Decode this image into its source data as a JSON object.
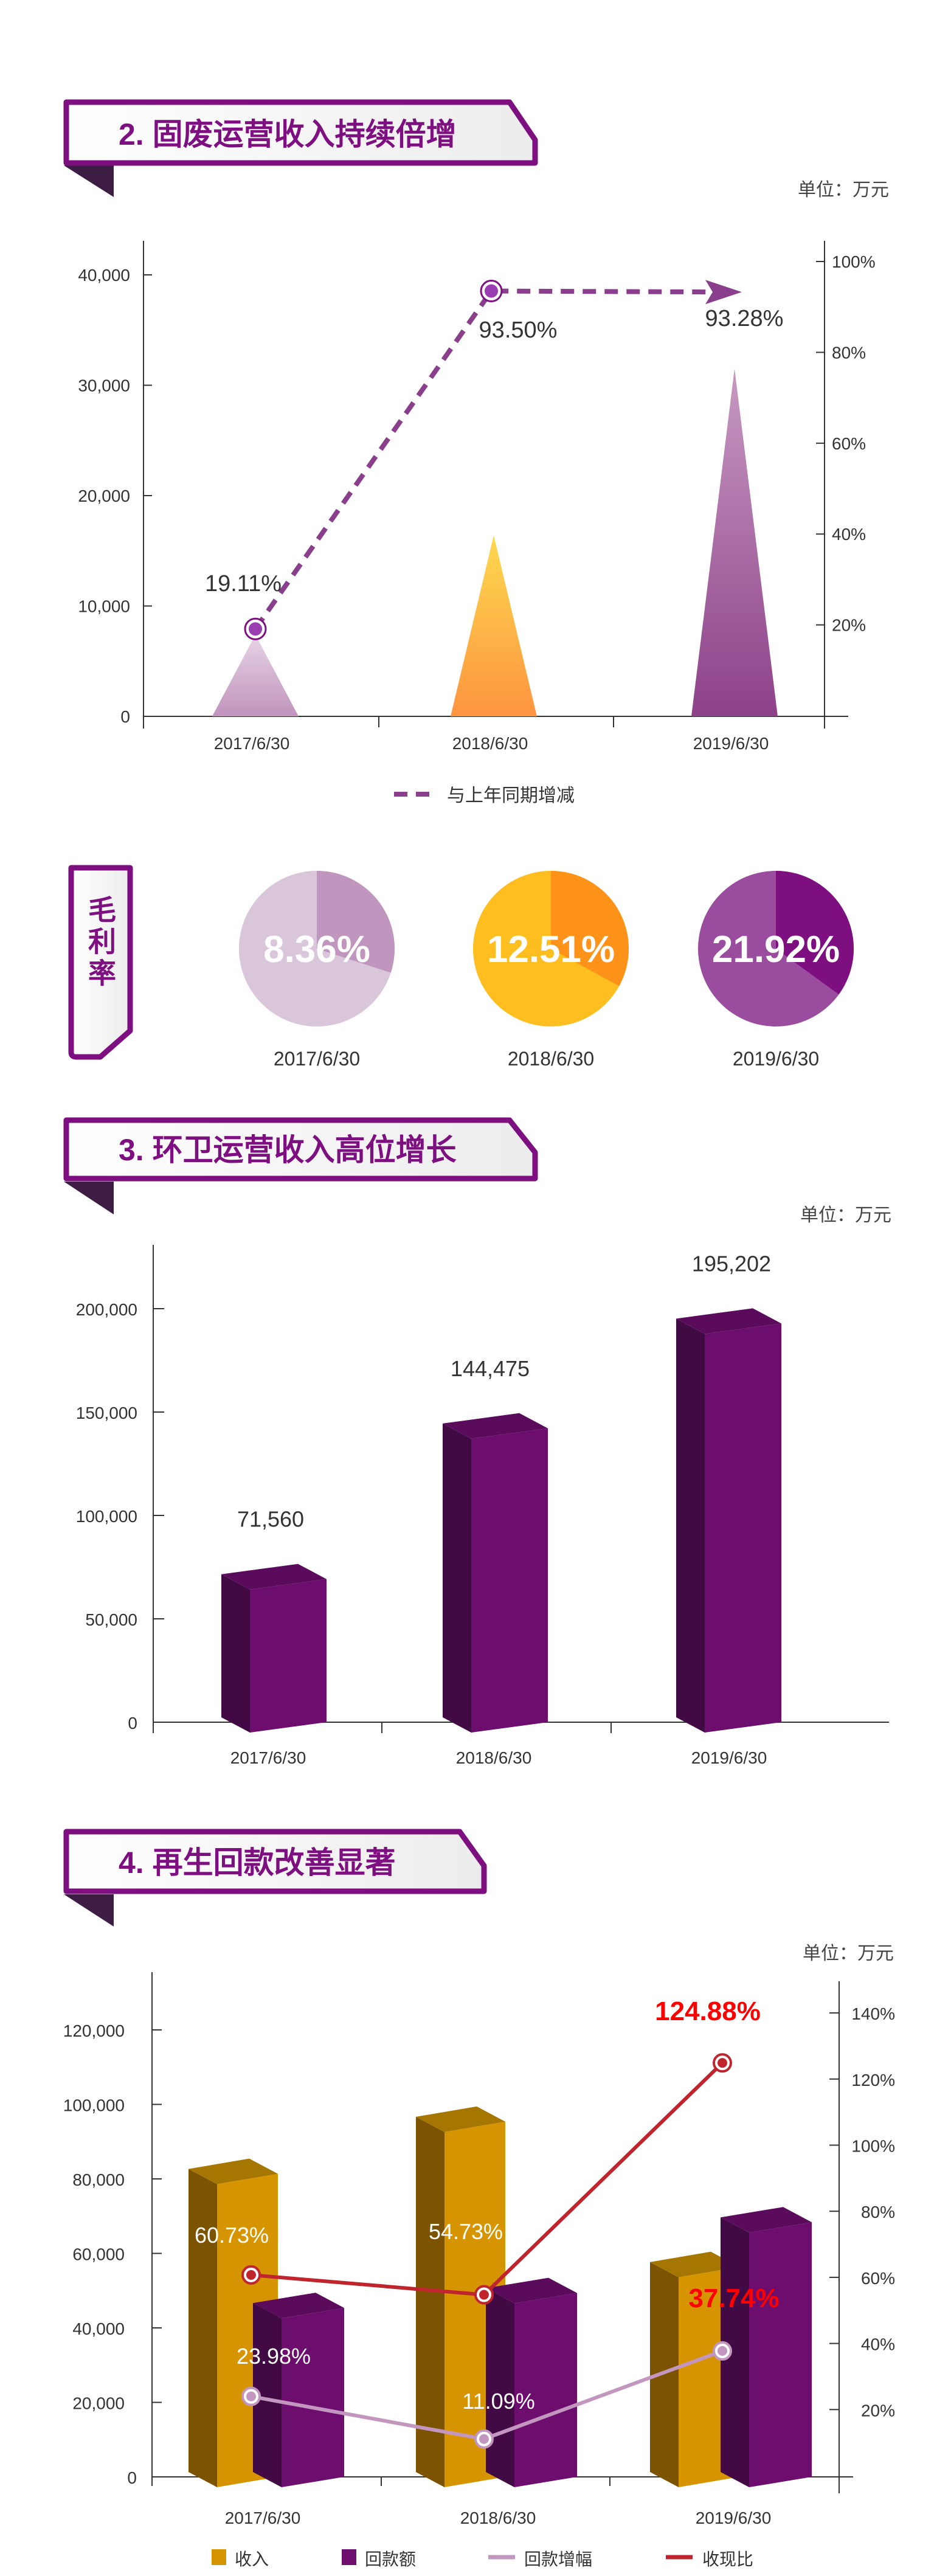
{
  "colors": {
    "brand": "#7e0f80",
    "dark": "#3d1d44",
    "red": "#c0252e",
    "highlight_red": "#ff0000",
    "gold": "#d69500",
    "purple": "#6d0e6f",
    "light_purple": "#c396c0"
  },
  "section2": {
    "title": "2. 固废运营收入持续倍增",
    "unit": "单位：万元"
  },
  "gross_margin": {
    "label": "毛利率",
    "items": [
      {
        "date": "2017/6/30",
        "value": "8.36%",
        "colors": [
          "#d9c6da",
          "#c196be"
        ]
      },
      {
        "date": "2018/6/30",
        "value": "12.51%",
        "colors": [
          "#ffbe1f",
          "#ff9218"
        ]
      },
      {
        "date": "2019/6/30",
        "value": "21.92%",
        "colors": [
          "#9a4c9e",
          "#7e0f80"
        ]
      }
    ]
  },
  "section3": {
    "title": "3. 环卫运营收入高位增长",
    "unit": "单位：万元"
  },
  "section4": {
    "title": "4. 再生回款改善显著",
    "unit": "单位：万元"
  },
  "chart_data": [
    {
      "type": "bar",
      "categories": [
        "2017/6/30",
        "2018/6/30",
        "2019/6/30"
      ],
      "series": [
        {
          "values": [
            7400,
            16400,
            31500
          ],
          "axis": "left",
          "colors": [
            [
              "#e8d3e6",
              "#c094bd"
            ],
            [
              "#fdd94f",
              "#fd9440"
            ],
            [
              "#c79ac2",
              "#8d4189"
            ]
          ]
        },
        {
          "name": "与上年同期增减",
          "type": "line",
          "style": "dashed",
          "axis": "right",
          "values": [
            19.11,
            93.5,
            93.28
          ],
          "labels": [
            "19.11%",
            "93.50%",
            "93.28%"
          ],
          "color": "#8a3f8c"
        }
      ],
      "y_left": {
        "range": [
          0,
          40000
        ],
        "ticks": [
          "0",
          "10,000",
          "20,000",
          "30,000",
          "40,000"
        ]
      },
      "y_right": {
        "range": [
          0,
          100
        ],
        "ticks": [
          "20%",
          "40%",
          "60%",
          "80%",
          "100%"
        ]
      },
      "legend": {
        "placement": "bottom",
        "entries": [
          "与上年同期增减"
        ]
      }
    },
    {
      "type": "bar",
      "categories": [
        "2017/6/30",
        "2018/6/30",
        "2019/6/30"
      ],
      "values": [
        71560,
        144475,
        195202
      ],
      "labels": [
        "71,560",
        "144,475",
        "195,202"
      ],
      "color": "#6d0e6f",
      "y_left": {
        "range": [
          0,
          200000
        ],
        "ticks": [
          "0",
          "50,000",
          "100,000",
          "150,000",
          "200,000"
        ]
      }
    },
    {
      "type": "bar",
      "categories": [
        "2017/6/30",
        "2018/6/30",
        "2019/6/30"
      ],
      "series": [
        {
          "name": "收入",
          "type": "bar",
          "axis": "left",
          "values": [
            83000,
            97000,
            58000
          ],
          "color": "#d69500"
        },
        {
          "name": "回款额",
          "type": "bar",
          "axis": "left",
          "values": [
            47000,
            51000,
            70000
          ],
          "color": "#6d0e6f"
        },
        {
          "name": "回款增幅",
          "type": "line",
          "axis": "right",
          "values": [
            23.98,
            11.09,
            37.74
          ],
          "labels": [
            "23.98%",
            "11.09%",
            "37.74%"
          ],
          "color": "#c396c0"
        },
        {
          "name": "收现比",
          "type": "line",
          "axis": "right",
          "values": [
            60.73,
            54.73,
            124.88
          ],
          "labels": [
            "60.73%",
            "54.73%",
            "124.88%"
          ],
          "color": "#c0252e"
        }
      ],
      "y_left": {
        "range": [
          0,
          120000
        ],
        "ticks": [
          "0",
          "20,000",
          "40,000",
          "60,000",
          "80,000",
          "100,000",
          "120,000"
        ]
      },
      "y_right": {
        "range": [
          0,
          140
        ],
        "ticks": [
          "20%",
          "40%",
          "60%",
          "80%",
          "100%",
          "120%",
          "140%"
        ]
      },
      "legend": {
        "placement": "bottom",
        "entries": [
          "收入",
          "回款额",
          "回款增幅",
          "收现比"
        ]
      }
    }
  ]
}
